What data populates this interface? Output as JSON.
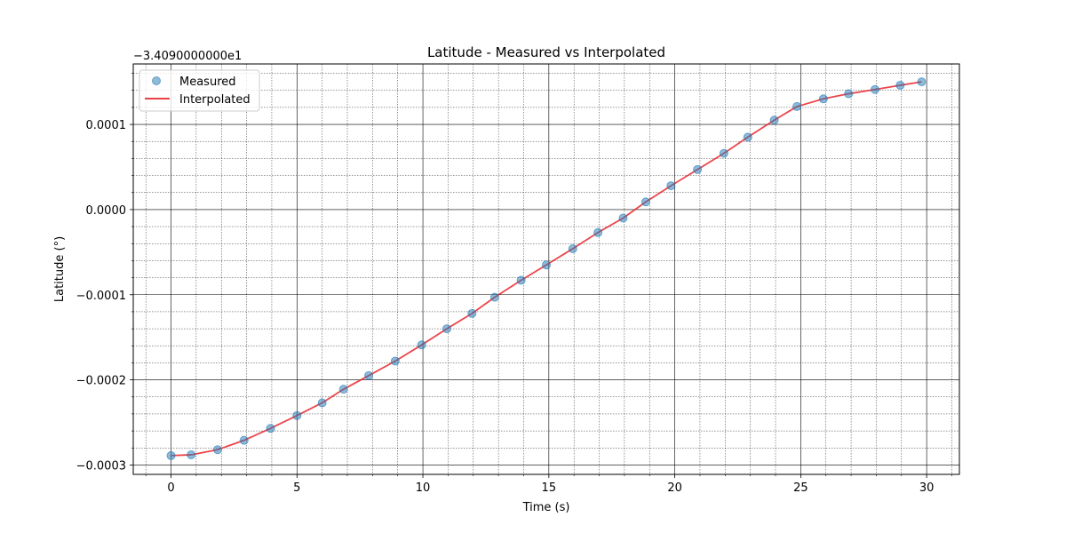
{
  "chart_data": {
    "type": "scatter",
    "title": "Latitude - Measured vs Interpolated",
    "xlabel": "Time (s)",
    "ylabel": "Latitude (°)",
    "offset_text": "−3.4090000000e1",
    "xlim": [
      -1.5,
      31.3
    ],
    "ylim": [
      -0.000311,
      0.000171
    ],
    "x_ticks": [
      0,
      5,
      10,
      15,
      20,
      25,
      30
    ],
    "x_tick_labels": [
      "0",
      "5",
      "10",
      "15",
      "20",
      "25",
      "30"
    ],
    "y_ticks": [
      -0.0003,
      -0.0002,
      -0.0001,
      0.0,
      0.0001
    ],
    "y_tick_labels": [
      "−0.0003",
      "−0.0002",
      "−0.0001",
      "0.0000",
      "0.0001"
    ],
    "grid": true,
    "legend_position": "top-left",
    "colors": {
      "measured": "#1f77b4",
      "interpolated": "#e8262b",
      "grid_major": "#000000",
      "grid_minor": "#000000"
    },
    "series": [
      {
        "name": "Measured",
        "kind": "scatter",
        "x": [
          0,
          0.8,
          1.85,
          2.9,
          3.95,
          5.0,
          6.0,
          6.85,
          7.85,
          8.9,
          9.95,
          10.95,
          11.95,
          12.85,
          13.9,
          14.9,
          15.95,
          16.95,
          17.95,
          18.85,
          19.85,
          20.9,
          21.95,
          22.9,
          23.95,
          24.85,
          25.9,
          26.9,
          27.95,
          28.95,
          29.8
        ],
        "y": [
          -0.000289,
          -0.000288,
          -0.000282,
          -0.000271,
          -0.000257,
          -0.000242,
          -0.000227,
          -0.000211,
          -0.000195,
          -0.000178,
          -0.000159,
          -0.00014,
          -0.000122,
          -0.000103,
          -8.3e-05,
          -6.5e-05,
          -4.6e-05,
          -2.7e-05,
          -1e-05,
          9e-06,
          2.8e-05,
          4.7e-05,
          6.6e-05,
          8.5e-05,
          0.000105,
          0.000121,
          0.00013,
          0.000136,
          0.000141,
          0.000146,
          0.00015
        ]
      },
      {
        "name": "Interpolated",
        "kind": "line",
        "x": [
          0,
          0.8,
          1.85,
          2.9,
          3.95,
          5.0,
          6.0,
          6.85,
          7.85,
          8.9,
          9.95,
          10.95,
          11.95,
          12.85,
          13.9,
          14.9,
          15.95,
          16.95,
          17.95,
          18.85,
          19.85,
          20.9,
          21.95,
          22.9,
          23.95,
          24.85,
          25.9,
          26.9,
          27.95,
          28.95,
          29.8
        ],
        "y": [
          -0.000289,
          -0.000288,
          -0.000282,
          -0.000271,
          -0.000257,
          -0.000242,
          -0.000227,
          -0.000211,
          -0.000195,
          -0.000178,
          -0.000159,
          -0.00014,
          -0.000122,
          -0.000103,
          -8.3e-05,
          -6.5e-05,
          -4.6e-05,
          -2.7e-05,
          -1e-05,
          9e-06,
          2.8e-05,
          4.7e-05,
          6.6e-05,
          8.5e-05,
          0.000105,
          0.000121,
          0.00013,
          0.000136,
          0.000141,
          0.000146,
          0.00015
        ]
      }
    ]
  }
}
